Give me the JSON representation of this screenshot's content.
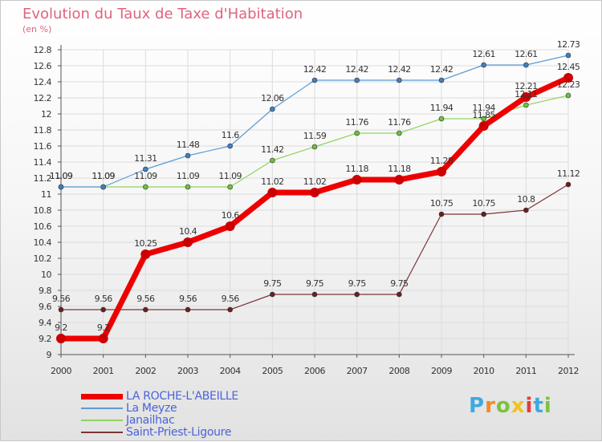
{
  "chart_data": {
    "type": "line",
    "title": "Evolution du Taux de Taxe d'Habitation",
    "subtitle": "(en %)",
    "x": [
      "2000",
      "2001",
      "2002",
      "2003",
      "2004",
      "2005",
      "2006",
      "2007",
      "2008",
      "2009",
      "2010",
      "2011",
      "2012"
    ],
    "ylim": [
      9,
      12.8
    ],
    "yticks": [
      "9",
      "9.2",
      "9.4",
      "9.6",
      "9.8",
      "10",
      "10.2",
      "10.4",
      "10.6",
      "10.8",
      "11",
      "11.2",
      "11.4",
      "11.6",
      "11.8",
      "12",
      "12.2",
      "12.4",
      "12.6",
      "12.8"
    ],
    "grid": true,
    "legend_position": "bottom-left",
    "series": [
      {
        "name": "LA ROCHE-L'ABEILLE",
        "color": "#ee0000",
        "point_color": "#cc0000",
        "width": 7,
        "r": 6,
        "values": [
          9.2,
          9.2,
          10.25,
          10.4,
          10.6,
          11.02,
          11.02,
          11.18,
          11.18,
          11.28,
          11.85,
          12.21,
          12.45
        ],
        "labels": [
          "9.2",
          "9.2",
          "10.25",
          "10.4",
          "10.6",
          "11.02",
          "11.02",
          "11.18",
          "11.18",
          "11.28",
          "11.85",
          "12.21",
          "12.45"
        ]
      },
      {
        "name": "La Meyze",
        "color": "#5b9bd5",
        "point_color": "#3f7fbf",
        "width": 1.2,
        "r": 3,
        "values": [
          11.09,
          11.09,
          11.31,
          11.48,
          11.6,
          12.06,
          12.42,
          12.42,
          12.42,
          12.42,
          12.61,
          12.61,
          12.73
        ],
        "labels": [
          "11.09",
          "11.09",
          "11.31",
          "11.48",
          "11.6",
          "12.06",
          "12.42",
          "12.42",
          "12.42",
          "12.42",
          "12.61",
          "12.61",
          "12.73"
        ]
      },
      {
        "name": "Janailhac",
        "color": "#8fd460",
        "point_color": "#6cc23a",
        "width": 1.2,
        "r": 3,
        "values": [
          11.09,
          11.09,
          11.09,
          11.09,
          11.09,
          11.42,
          11.59,
          11.76,
          11.76,
          11.94,
          11.94,
          12.11,
          12.23
        ],
        "labels": [
          "11.09",
          "11.09",
          "11.09",
          "11.09",
          "11.09",
          "11.42",
          "11.59",
          "11.76",
          "11.76",
          "11.94",
          "11.94",
          "12.11",
          "12.23"
        ]
      },
      {
        "name": "Saint-Priest-Ligoure",
        "color": "#7a3535",
        "point_color": "#6a2020",
        "width": 1.2,
        "r": 3,
        "values": [
          9.56,
          9.56,
          9.56,
          9.56,
          9.56,
          9.75,
          9.75,
          9.75,
          9.75,
          10.75,
          10.75,
          10.8,
          11.12
        ],
        "labels": [
          "9.56",
          "9.56",
          "9.56",
          "9.56",
          "9.56",
          "9.75",
          "9.75",
          "9.75",
          "9.75",
          "10.75",
          "10.75",
          "10.8",
          "11.12"
        ]
      }
    ]
  },
  "logo": {
    "letters": [
      "P",
      "r",
      "o",
      "x",
      "i",
      "t",
      "i"
    ],
    "colors": [
      "#3fa9e0",
      "#f08a24",
      "#7dc242",
      "#f0c419",
      "#e53b3b",
      "#3fa9e0",
      "#7dc242"
    ]
  }
}
